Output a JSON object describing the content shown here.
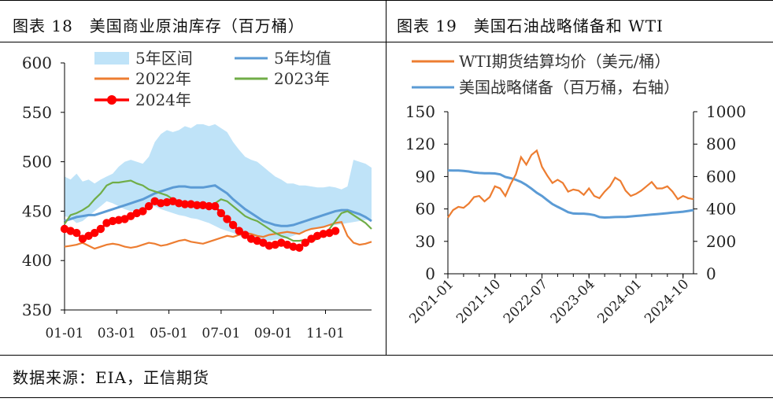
{
  "panel_left": {
    "title": "图表 18　美国商业原油库存（百万桶）"
  },
  "panel_right": {
    "title": "图表 19　美国石油战略储备和 WTI"
  },
  "source": "数据来源：EIA，正信期货",
  "chart_data": [
    {
      "type": "line",
      "title": "美国商业原油库存（百万桶）",
      "x_ticks": [
        "01-01",
        "03-01",
        "05-01",
        "07-01",
        "09-01",
        "11-01"
      ],
      "ylim": [
        350,
        600
      ],
      "y_ticks": [
        350,
        400,
        450,
        500,
        550,
        600
      ],
      "grid": false,
      "legend_position": "top",
      "legend": [
        "5年区间",
        "5年均值",
        "2022年",
        "2023年",
        "2024年"
      ],
      "week": [
        1,
        2,
        3,
        4,
        5,
        6,
        7,
        8,
        9,
        10,
        11,
        12,
        13,
        14,
        15,
        16,
        17,
        18,
        19,
        20,
        21,
        22,
        23,
        24,
        25,
        26,
        27,
        28,
        29,
        30,
        31,
        32,
        33,
        34,
        35,
        36,
        37,
        38,
        39,
        40,
        41,
        42,
        43,
        44,
        45,
        46,
        47,
        48,
        49,
        50,
        51,
        52
      ],
      "band_low": [
        445,
        443,
        438,
        440,
        445,
        450,
        455,
        460,
        458,
        455,
        452,
        450,
        450,
        452,
        455,
        455,
        452,
        450,
        448,
        446,
        445,
        443,
        442,
        440,
        438,
        435,
        432,
        430,
        428,
        425,
        423,
        422,
        420,
        420,
        420,
        421,
        422,
        423,
        425,
        428,
        430,
        432,
        433,
        434,
        435,
        436,
        437,
        438,
        439,
        440,
        441,
        442
      ],
      "band_high": [
        485,
        482,
        488,
        480,
        482,
        478,
        482,
        485,
        488,
        495,
        500,
        502,
        500,
        498,
        505,
        520,
        528,
        532,
        530,
        532,
        536,
        534,
        538,
        538,
        536,
        538,
        534,
        530,
        520,
        512,
        505,
        502,
        500,
        495,
        490,
        485,
        482,
        478,
        478,
        476,
        476,
        475,
        474,
        474,
        475,
        474,
        472,
        475,
        502,
        500,
        498,
        494
      ],
      "series": [
        {
          "name": "5年均值",
          "color": "#5B9BD5",
          "values": [
            440,
            442,
            444,
            445,
            446,
            446,
            448,
            450,
            452,
            454,
            456,
            458,
            460,
            462,
            465,
            468,
            470,
            472,
            474,
            475,
            475,
            474,
            474,
            474,
            475,
            476,
            472,
            468,
            462,
            457,
            452,
            448,
            444,
            440,
            438,
            436,
            435,
            435,
            436,
            438,
            440,
            442,
            444,
            446,
            448,
            450,
            451,
            451,
            449,
            447,
            444,
            440
          ]
        },
        {
          "name": "2022年",
          "color": "#ED7D31",
          "values": [
            414,
            415,
            416,
            418,
            415,
            412,
            414,
            416,
            417,
            416,
            414,
            413,
            414,
            416,
            418,
            417,
            415,
            416,
            418,
            420,
            421,
            419,
            418,
            417,
            419,
            421,
            423,
            425,
            424,
            426,
            428,
            427,
            425,
            424,
            426,
            427,
            428,
            429,
            428,
            427,
            430,
            432,
            433,
            434,
            436,
            438,
            439,
            425,
            418,
            416,
            417,
            419
          ]
        },
        {
          "name": "2023年",
          "color": "#70AD47",
          "values": [
            437,
            446,
            448,
            451,
            455,
            462,
            468,
            476,
            479,
            479,
            480,
            481,
            478,
            476,
            472,
            470,
            468,
            466,
            462,
            460,
            458,
            458,
            456,
            455,
            455,
            458,
            462,
            460,
            455,
            450,
            445,
            442,
            440,
            436,
            432,
            428,
            425,
            423,
            420,
            420,
            421,
            420,
            422,
            426,
            432,
            440,
            448,
            450,
            446,
            442,
            438,
            432
          ]
        },
        {
          "name": "2024年",
          "color": "#FF0000",
          "values": [
            432,
            430,
            428,
            422,
            425,
            428,
            432,
            438,
            440,
            441,
            442,
            445,
            448,
            450,
            455,
            460,
            458,
            459,
            460,
            458,
            457,
            457,
            456,
            456,
            455,
            455,
            448,
            442,
            436,
            430,
            426,
            422,
            420,
            418,
            415,
            416,
            418,
            416,
            414,
            413,
            418,
            422,
            425,
            427,
            428,
            430
          ]
        }
      ]
    },
    {
      "type": "line",
      "title": "美国石油战略储备和 WTI",
      "x_ticks": [
        "2021-01",
        "2021-10",
        "2022-07",
        "2023-04",
        "2024-01",
        "2024-10"
      ],
      "y_left": {
        "ticks": [
          0,
          30,
          60,
          90,
          120,
          150
        ],
        "lim": [
          0,
          150
        ]
      },
      "y_right": {
        "ticks": [
          0,
          200,
          400,
          600,
          800,
          1000
        ],
        "lim": [
          0,
          1000
        ]
      },
      "grid": false,
      "legend_position": "top",
      "legend": [
        "WTI期货结算均价（美元/桶）",
        "美国战略储备（百万桶，右轴）"
      ],
      "months": [
        "2021-01",
        "2021-02",
        "2021-03",
        "2021-04",
        "2021-05",
        "2021-06",
        "2021-07",
        "2021-08",
        "2021-09",
        "2021-10",
        "2021-11",
        "2021-12",
        "2022-01",
        "2022-02",
        "2022-03",
        "2022-04",
        "2022-05",
        "2022-06",
        "2022-07",
        "2022-08",
        "2022-09",
        "2022-10",
        "2022-11",
        "2022-12",
        "2023-01",
        "2023-02",
        "2023-03",
        "2023-04",
        "2023-05",
        "2023-06",
        "2023-07",
        "2023-08",
        "2023-09",
        "2023-10",
        "2023-11",
        "2023-12",
        "2024-01",
        "2024-02",
        "2024-03",
        "2024-04",
        "2024-05",
        "2024-06",
        "2024-07",
        "2024-08",
        "2024-09",
        "2024-10",
        "2024-11",
        "2024-12"
      ],
      "series": [
        {
          "name": "WTI期货结算均价（美元/桶）",
          "axis": "left",
          "color": "#ED7D31",
          "values": [
            52,
            59,
            62,
            61,
            65,
            71,
            72,
            67,
            71,
            81,
            79,
            72,
            83,
            92,
            108,
            101,
            110,
            114,
            99,
            91,
            84,
            87,
            84,
            76,
            78,
            77,
            73,
            79,
            72,
            70,
            76,
            81,
            89,
            86,
            77,
            72,
            74,
            77,
            81,
            85,
            79,
            79,
            81,
            76,
            69,
            72,
            70,
            69
          ]
        },
        {
          "name": "美国战略储备（百万桶，右轴）",
          "axis": "right",
          "color": "#5B9BD5",
          "values": [
            638,
            637,
            637,
            635,
            631,
            625,
            622,
            620,
            620,
            619,
            613,
            597,
            590,
            580,
            567,
            548,
            525,
            500,
            480,
            455,
            430,
            413,
            397,
            380,
            372,
            371,
            371,
            368,
            362,
            350,
            347,
            348,
            350,
            351,
            351,
            354,
            357,
            359,
            362,
            365,
            368,
            371,
            374,
            377,
            380,
            383,
            388,
            393
          ]
        }
      ]
    }
  ]
}
